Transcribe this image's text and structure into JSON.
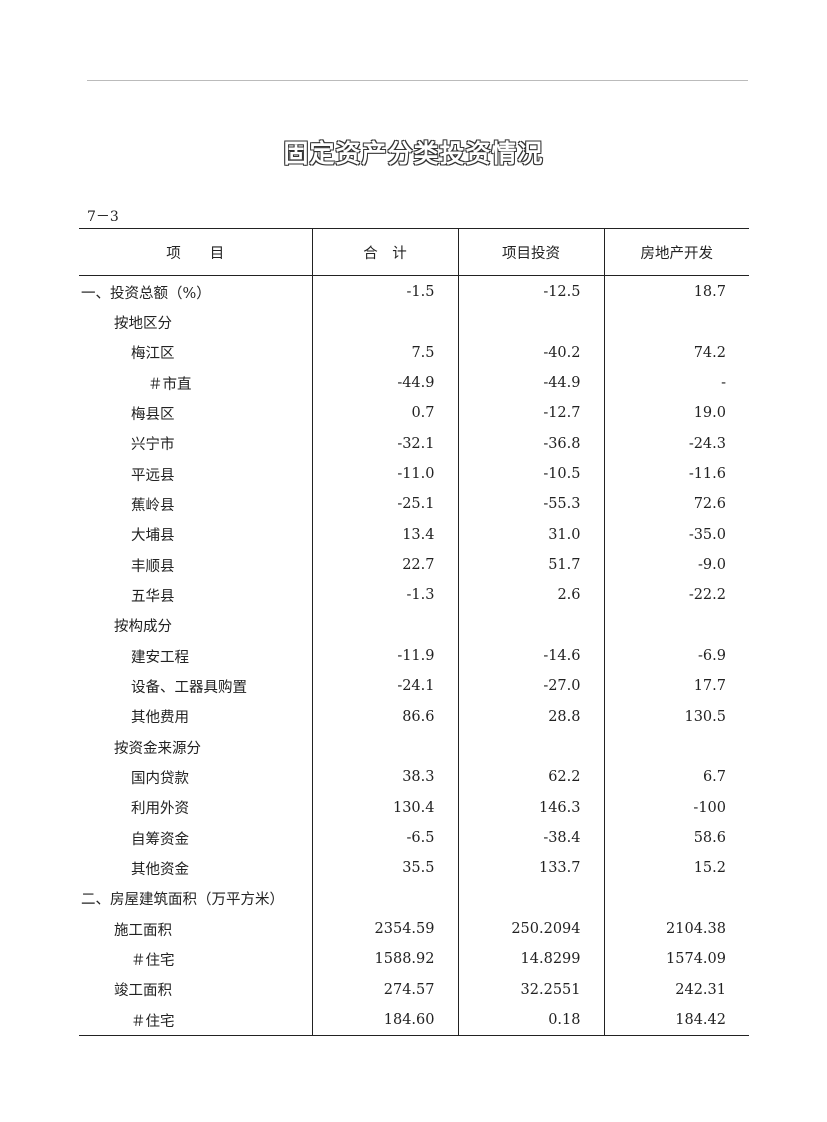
{
  "page": {
    "title": "固定资产分类投资情况",
    "table_no": "7－3"
  },
  "table": {
    "headers": [
      "项　　目",
      "合　计",
      "项目投资",
      "房地产开发"
    ],
    "rows": [
      {
        "label": "一、投资总额（%）",
        "level": 0,
        "values": [
          "-1.5",
          "-12.5",
          "18.7"
        ]
      },
      {
        "label": "按地区分",
        "level": 1,
        "values": [
          "",
          "",
          ""
        ]
      },
      {
        "label": "梅江区",
        "level": 2,
        "values": [
          "7.5",
          "-40.2",
          "74.2"
        ]
      },
      {
        "label": "＃市直",
        "level": 3,
        "values": [
          "-44.9",
          "-44.9",
          "-"
        ]
      },
      {
        "label": "梅县区",
        "level": 2,
        "values": [
          "0.7",
          "-12.7",
          "19.0"
        ]
      },
      {
        "label": "兴宁市",
        "level": 2,
        "values": [
          "-32.1",
          "-36.8",
          "-24.3"
        ]
      },
      {
        "label": "平远县",
        "level": 2,
        "values": [
          "-11.0",
          "-10.5",
          "-11.6"
        ]
      },
      {
        "label": "蕉岭县",
        "level": 2,
        "values": [
          "-25.1",
          "-55.3",
          "72.6"
        ]
      },
      {
        "label": "大埔县",
        "level": 2,
        "values": [
          "13.4",
          "31.0",
          "-35.0"
        ]
      },
      {
        "label": "丰顺县",
        "level": 2,
        "values": [
          "22.7",
          "51.7",
          "-9.0"
        ]
      },
      {
        "label": "五华县",
        "level": 2,
        "values": [
          "-1.3",
          "2.6",
          "-22.2"
        ]
      },
      {
        "label": "按构成分",
        "level": 1,
        "values": [
          "",
          "",
          ""
        ]
      },
      {
        "label": "建安工程",
        "level": 2,
        "values": [
          "-11.9",
          "-14.6",
          "-6.9"
        ]
      },
      {
        "label": "设备、工器具购置",
        "level": 2,
        "values": [
          "-24.1",
          "-27.0",
          "17.7"
        ]
      },
      {
        "label": "其他费用",
        "level": 2,
        "values": [
          "86.6",
          "28.8",
          "130.5"
        ]
      },
      {
        "label": "按资金来源分",
        "level": 1,
        "values": [
          "",
          "",
          ""
        ]
      },
      {
        "label": "国内贷款",
        "level": 2,
        "values": [
          "38.3",
          "62.2",
          "6.7"
        ]
      },
      {
        "label": "利用外资",
        "level": 2,
        "values": [
          "130.4",
          "146.3",
          "-100"
        ]
      },
      {
        "label": "自筹资金",
        "level": 2,
        "values": [
          "-6.5",
          "-38.4",
          "58.6"
        ]
      },
      {
        "label": "其他资金",
        "level": 2,
        "values": [
          "35.5",
          "133.7",
          "15.2"
        ]
      },
      {
        "label": "二、房屋建筑面积（万平方米）",
        "level": 0,
        "values": [
          "",
          "",
          ""
        ]
      },
      {
        "label": "施工面积",
        "level": 1,
        "values": [
          "2354.59",
          "250.2094",
          "2104.38"
        ]
      },
      {
        "label": "＃住宅",
        "level": 2,
        "values": [
          "1588.92",
          "14.8299",
          "1574.09"
        ]
      },
      {
        "label": "竣工面积",
        "level": 1,
        "values": [
          "274.57",
          "32.2551",
          "242.31"
        ]
      },
      {
        "label": "＃住宅",
        "level": 2,
        "values": [
          "184.60",
          "0.18",
          "184.42"
        ]
      }
    ]
  }
}
